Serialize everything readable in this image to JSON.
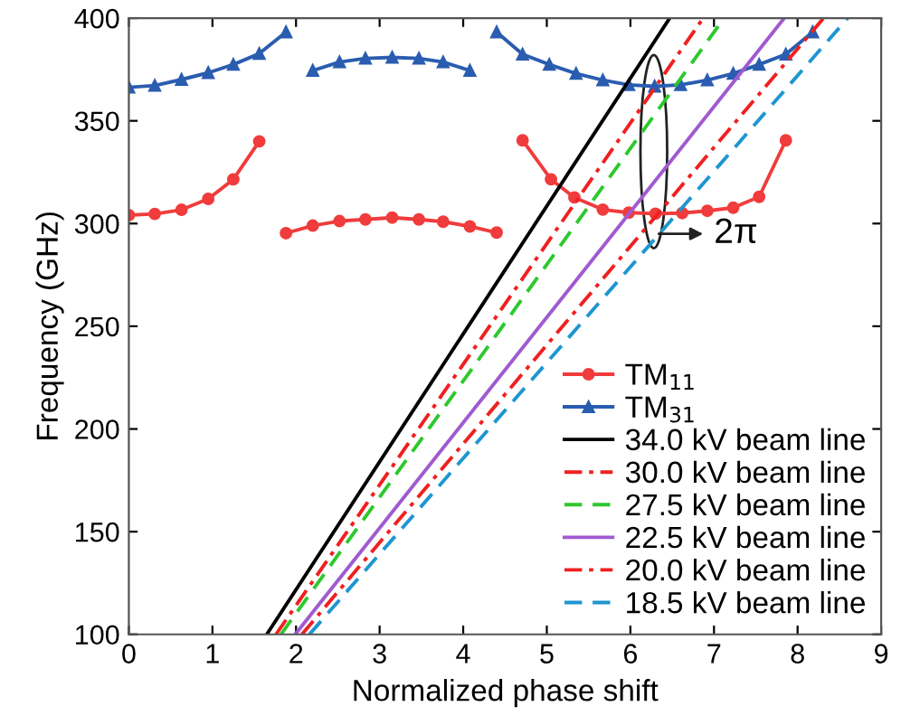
{
  "chart_data": {
    "type": "line",
    "xlabel": "Normalized phase shift",
    "ylabel": "Frequency (GHz)",
    "xlim": [
      0,
      9
    ],
    "ylim": [
      100,
      400
    ],
    "xticks": [
      0,
      1,
      2,
      3,
      4,
      5,
      6,
      7,
      8,
      9
    ],
    "yticks": [
      100,
      150,
      200,
      250,
      300,
      350,
      400
    ],
    "grid": false,
    "legend": "bottom right",
    "annotations": [
      {
        "text": "2π",
        "x": 6.28,
        "y": 295
      }
    ],
    "series": [
      {
        "name": "TM$_{11}$",
        "color": "#f03c3c",
        "marker": "circle",
        "line_style": "solid",
        "x": [
          0,
          0.31,
          0.63,
          0.95,
          1.25,
          1.56,
          1.72,
          1.88,
          2.2,
          2.52,
          2.83,
          3.15,
          3.47,
          3.76,
          4.08,
          4.4,
          4.55,
          4.71,
          5.05,
          5.33,
          5.67,
          5.98,
          6.3,
          6.62,
          6.92,
          7.23,
          7.54,
          7.86
        ],
        "values": [
          304.1,
          304.7,
          306.7,
          312,
          321.5,
          340,
          null,
          295.3,
          299,
          301.2,
          302,
          302.9,
          302,
          300.9,
          298.6,
          295.6,
          null,
          340.5,
          321.5,
          312.7,
          306.8,
          305.3,
          304.8,
          305.1,
          306.2,
          307.7,
          313,
          340.5
        ]
      },
      {
        "name": "TM$_{31}$",
        "color": "#2a5db0",
        "marker": "triangle",
        "line_style": "solid",
        "x": [
          0,
          0.31,
          0.63,
          0.95,
          1.25,
          1.56,
          1.88,
          2.04,
          2.2,
          2.52,
          2.83,
          3.15,
          3.47,
          3.76,
          4.08,
          4.24,
          4.4,
          4.71,
          5.03,
          5.35,
          5.67,
          5.98,
          6.29,
          6.6,
          6.92,
          7.23,
          7.54,
          7.86,
          8.18
        ],
        "values": [
          366.3,
          367.2,
          370.1,
          373.4,
          377.4,
          382.7,
          393.2,
          null,
          374.5,
          378.6,
          380.4,
          380.9,
          380.4,
          378.6,
          374.5,
          null,
          393.2,
          382.4,
          377.4,
          373,
          369.8,
          367.5,
          366.8,
          367.5,
          369.8,
          373,
          377.4,
          382.4,
          393.2
        ]
      },
      {
        "name": "34.0 kV beam line",
        "color": "#000000",
        "marker": "none",
        "line_style": "solid",
        "x": [
          1.65,
          6.47
        ],
        "values": [
          100,
          400
        ]
      },
      {
        "name": "30.0 kV beam line",
        "color": "#f02020",
        "marker": "none",
        "line_style": "dashdot",
        "x": [
          1.76,
          6.87
        ],
        "values": [
          100,
          400
        ]
      },
      {
        "name": "27.5 kV beam line",
        "color": "#2ec82e",
        "marker": "none",
        "line_style": "dashed",
        "x": [
          1.82,
          7.12
        ],
        "values": [
          100,
          400
        ]
      },
      {
        "name": "22.5 kV beam line",
        "color": "#a05ad0",
        "marker": "none",
        "line_style": "solid",
        "x": [
          1.99,
          7.84
        ],
        "values": [
          100,
          400
        ]
      },
      {
        "name": "20.0 kV beam line",
        "color": "#f02020",
        "marker": "none",
        "line_style": "dashdot",
        "x": [
          2.07,
          8.31
        ],
        "values": [
          100,
          400
        ]
      },
      {
        "name": "18.5 kV beam line",
        "color": "#1e96d0",
        "marker": "none",
        "line_style": "dashed",
        "x": [
          2.16,
          8.6
        ],
        "values": [
          100,
          400
        ]
      }
    ]
  }
}
